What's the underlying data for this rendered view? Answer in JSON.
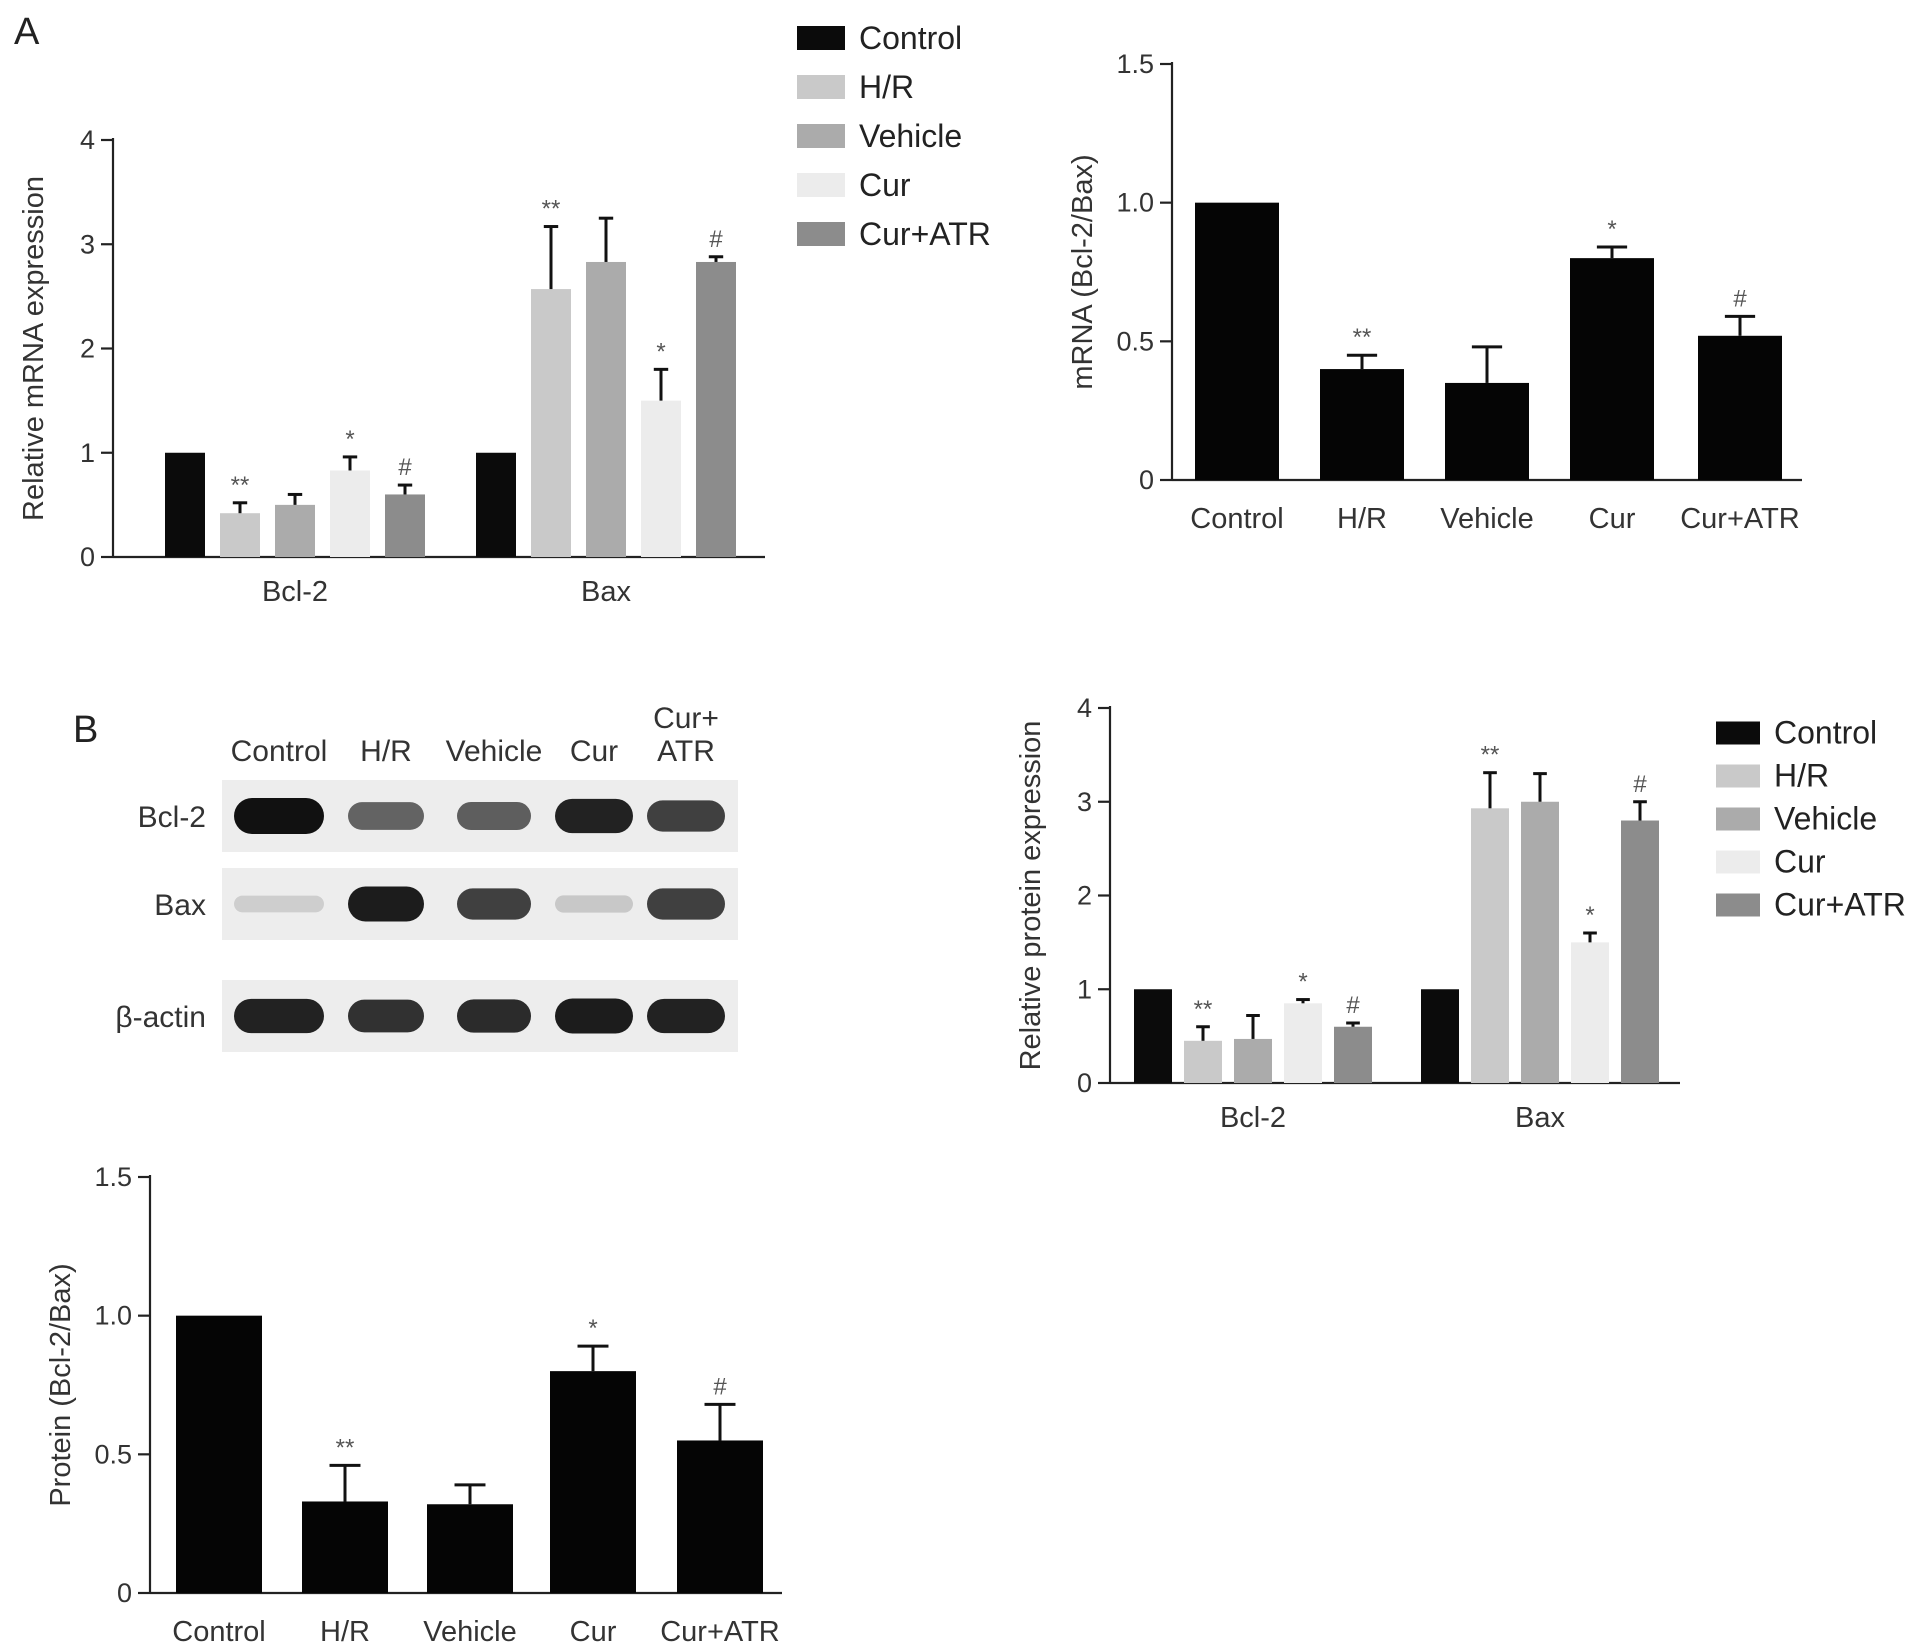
{
  "panels": {
    "a": "A",
    "b": "B"
  },
  "legend": [
    "Control",
    "H/R",
    "Vehicle",
    "Cur",
    "Cur+ATR"
  ],
  "colors": {
    "Control": "#0b0b0b",
    "H/R": "#c9c9c9",
    "Vehicle": "#ababab",
    "Cur": "#ececec",
    "Cur+ATR": "#8c8c8c",
    "ratio_bar": "#050505"
  },
  "western_blot": {
    "lanes": [
      "Control",
      "H/R",
      "Vehicle",
      "Cur",
      "Cur+\nATR"
    ],
    "rows": [
      {
        "label": "Bcl-2",
        "intensity": [
          1.0,
          0.62,
          0.64,
          0.92,
          0.78
        ]
      },
      {
        "label": "Bax",
        "intensity": [
          0.12,
          0.95,
          0.78,
          0.15,
          0.78
        ]
      },
      {
        "label": "β-actin",
        "intensity": [
          0.92,
          0.85,
          0.88,
          0.95,
          0.92
        ]
      }
    ]
  },
  "chart_data": [
    {
      "id": "mrna-grouped",
      "type": "bar",
      "ylabel": "Relative mRNA expression",
      "ylim": [
        0,
        4
      ],
      "yticks": [
        "0",
        "1",
        "2",
        "3",
        "4"
      ],
      "categories": [
        "Bcl-2",
        "Bax"
      ],
      "series": [
        {
          "name": "Control",
          "values": [
            1.0,
            1.0
          ],
          "errors": [
            0,
            0
          ],
          "marks": [
            "",
            ""
          ]
        },
        {
          "name": "H/R",
          "values": [
            0.42,
            2.57
          ],
          "errors": [
            0.1,
            0.6
          ],
          "marks": [
            "**",
            "**"
          ]
        },
        {
          "name": "Vehicle",
          "values": [
            0.5,
            2.83
          ],
          "errors": [
            0.1,
            0.42
          ],
          "marks": [
            "",
            ""
          ]
        },
        {
          "name": "Cur",
          "values": [
            0.83,
            1.5
          ],
          "errors": [
            0.13,
            0.3
          ],
          "marks": [
            "*",
            "*"
          ]
        },
        {
          "name": "Cur+ATR",
          "values": [
            0.6,
            2.83
          ],
          "errors": [
            0.09,
            0.05
          ],
          "marks": [
            "#",
            "#"
          ]
        }
      ]
    },
    {
      "id": "mrna-ratio",
      "type": "bar",
      "ylabel": "mRNA (Bcl-2/Bax)",
      "ylim": [
        0,
        1.5
      ],
      "yticks": [
        "0",
        "0.5",
        "1.0",
        "1.5"
      ],
      "categories": [
        "Control",
        "H/R",
        "Vehicle",
        "Cur",
        "Cur+ATR"
      ],
      "values": [
        1.0,
        0.4,
        0.35,
        0.8,
        0.52
      ],
      "errors": [
        0,
        0.05,
        0.13,
        0.04,
        0.07
      ],
      "marks": [
        "",
        "**",
        "",
        "*",
        "#"
      ]
    },
    {
      "id": "protein-grouped",
      "type": "bar",
      "ylabel": "Relative protein expression",
      "ylim": [
        0,
        4
      ],
      "yticks": [
        "0",
        "1",
        "2",
        "3",
        "4"
      ],
      "categories": [
        "Bcl-2",
        "Bax"
      ],
      "series": [
        {
          "name": "Control",
          "values": [
            1.0,
            1.0
          ],
          "errors": [
            0,
            0
          ],
          "marks": [
            "",
            ""
          ]
        },
        {
          "name": "H/R",
          "values": [
            0.45,
            2.93
          ],
          "errors": [
            0.15,
            0.38
          ],
          "marks": [
            "**",
            "**"
          ]
        },
        {
          "name": "Vehicle",
          "values": [
            0.47,
            3.0
          ],
          "errors": [
            0.25,
            0.3
          ],
          "marks": [
            "",
            ""
          ]
        },
        {
          "name": "Cur",
          "values": [
            0.85,
            1.5
          ],
          "errors": [
            0.04,
            0.1
          ],
          "marks": [
            "*",
            "*"
          ]
        },
        {
          "name": "Cur+ATR",
          "values": [
            0.6,
            2.8
          ],
          "errors": [
            0.04,
            0.2
          ],
          "marks": [
            "#",
            "#"
          ]
        }
      ]
    },
    {
      "id": "protein-ratio",
      "type": "bar",
      "ylabel": "Protein (Bcl-2/Bax)",
      "ylim": [
        0,
        1.5
      ],
      "yticks": [
        "0",
        "0.5",
        "1.0",
        "1.5"
      ],
      "categories": [
        "Control",
        "H/R",
        "Vehicle",
        "Cur",
        "Cur+ATR"
      ],
      "values": [
        1.0,
        0.33,
        0.32,
        0.8,
        0.55
      ],
      "errors": [
        0,
        0.13,
        0.07,
        0.09,
        0.13
      ],
      "marks": [
        "",
        "**",
        "",
        "*",
        "#"
      ]
    }
  ]
}
